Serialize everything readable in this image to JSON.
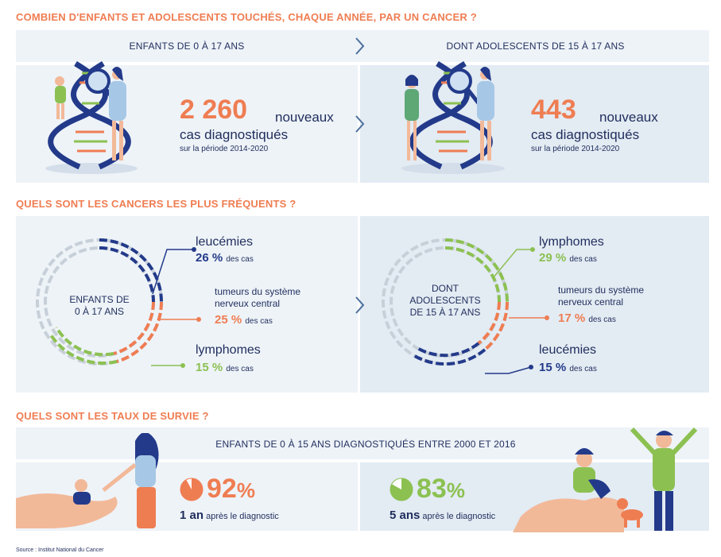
{
  "section1": {
    "title": "COMBIEN D'ENFANTS ET ADOLESCENTS TOUCHÉS, CHAQUE ANNÉE, PAR UN CANCER ?",
    "left": {
      "header": "ENFANTS DE 0 À 17 ANS",
      "number": "2 260",
      "word1": "nouveaux",
      "word2": "cas diagnostiqués",
      "period": "sur la période 2014-2020"
    },
    "right": {
      "header": "DONT ADOLESCENTS DE 15 À 17 ANS",
      "number": "443",
      "word1": "nouveaux",
      "word2": "cas diagnostiqués",
      "period": "sur la période 2014-2020"
    }
  },
  "section2": {
    "title": "QUELS SONT LES CANCERS LES PLUS FRÉQUENTS ?",
    "left": {
      "ring_label_1": "ENFANTS DE",
      "ring_label_2": "0 À 17 ANS",
      "items": [
        {
          "name": "leucémies",
          "pct": "26 %",
          "unit": "des cas",
          "color": "#233a8a"
        },
        {
          "name_1": "tumeurs du système",
          "name_2": "nerveux central",
          "pct": "25 %",
          "unit": "des cas",
          "color": "#ef7d52"
        },
        {
          "name": "lymphomes",
          "pct": "15 %",
          "unit": "des cas",
          "color": "#8cc152"
        }
      ]
    },
    "right": {
      "ring_label_1": "DONT",
      "ring_label_2": "ADOLESCENTS",
      "ring_label_3": "DE 15 À 17 ANS",
      "items": [
        {
          "name": "lymphomes",
          "pct": "29 %",
          "unit": "des cas",
          "color": "#8cc152"
        },
        {
          "name_1": "tumeurs du système",
          "name_2": "nerveux central",
          "pct": "17 %",
          "unit": "des cas",
          "color": "#ef7d52"
        },
        {
          "name": "leucémies",
          "pct": "15 %",
          "unit": "des cas",
          "color": "#233a8a"
        }
      ]
    }
  },
  "section3": {
    "title": "QUELS SONT LES TAUX DE SURVIE ?",
    "header": "ENFANTS DE 0 À 15 ANS DIAGNOSTIQUÉS ENTRE 2000 ET 2016",
    "left": {
      "number": "92",
      "unit": "%",
      "period": "1 an",
      "suffix": "après le diagnostic",
      "fraction": 0.92,
      "color": "#ef7d52"
    },
    "right": {
      "number": "83",
      "unit": "%",
      "period": "5 ans",
      "suffix": "après le diagnostic",
      "fraction": 0.83,
      "color": "#8cc152"
    }
  },
  "source": "Source : Institut National du Cancer",
  "icons": [
    "dna-icon",
    "magnifier-icon",
    "chevron-right-icon",
    "pie-icon",
    "hand-icon",
    "dog-icon"
  ]
}
